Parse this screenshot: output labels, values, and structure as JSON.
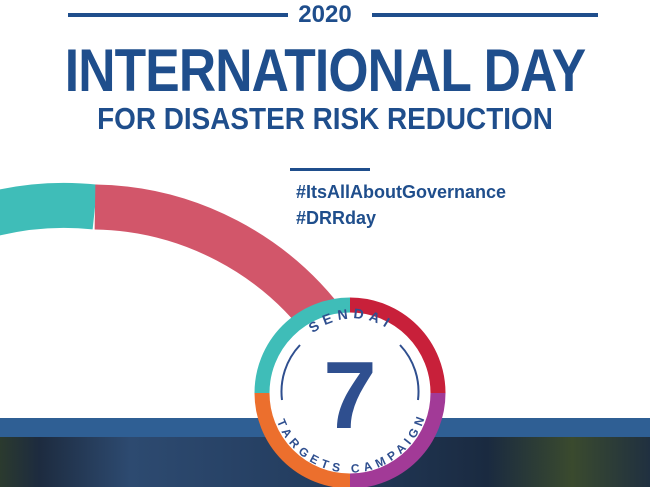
{
  "header": {
    "year": "2020",
    "title_line1": "INTERNATIONAL DAY",
    "title_line2": "FOR DISASTER RISK REDUCTION"
  },
  "hashtags": [
    "#ItsAllAboutGovernance",
    "#DRRday"
  ],
  "badge": {
    "top_text": "SENDAI",
    "number": "7",
    "bottom_text": "TARGETS CAMPAIGN"
  },
  "colors": {
    "primary": "#1f4e8c",
    "teal": "#3fbdb8",
    "red_arc": "#d2566a",
    "badge_red": "#c8203a",
    "badge_purple": "#a23a97",
    "badge_orange": "#ec6f2d",
    "band": "#2f5f94"
  }
}
